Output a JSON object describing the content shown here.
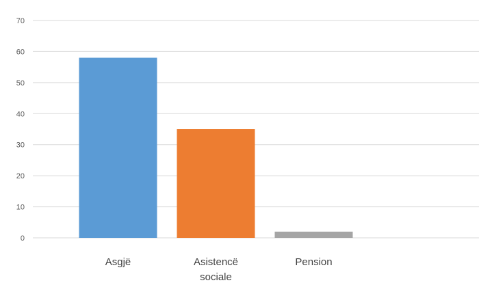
{
  "chart_data": {
    "type": "bar",
    "title": "",
    "xlabel": "",
    "ylabel": "",
    "categories": [
      "Asgjë",
      "Asistencë sociale",
      "Pension"
    ],
    "category_label_lines": [
      [
        "Asgjë"
      ],
      [
        "Asistencë",
        "sociale"
      ],
      [
        "Pension"
      ]
    ],
    "values": [
      58,
      35,
      2
    ],
    "bar_colors": [
      "#5B9BD5",
      "#ED7D31",
      "#A5A5A5"
    ],
    "ylim": [
      0,
      70
    ],
    "yticks": [
      0,
      10,
      20,
      30,
      40,
      50,
      60,
      70
    ],
    "ytick_labels": [
      "0",
      "10",
      "20",
      "30",
      "40",
      "50",
      "60",
      "70"
    ],
    "grid": true,
    "gridline_color": "#D9D9D9",
    "legend": "none"
  }
}
